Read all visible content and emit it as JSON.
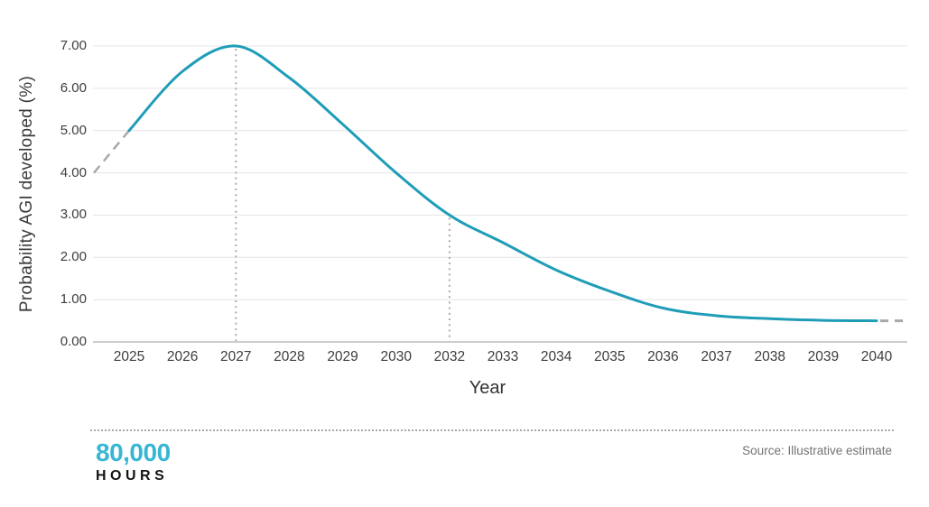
{
  "chart_data": {
    "type": "line",
    "title": "",
    "xlabel": "Year",
    "ylabel": "Probability AGI developed (%)",
    "x_tick_labels": [
      "2025",
      "2026",
      "2027",
      "2028",
      "2029",
      "2030",
      "2032",
      "2033",
      "2034",
      "2035",
      "2036",
      "2037",
      "2038",
      "2039",
      "2040"
    ],
    "y_tick_labels": [
      "0.00",
      "1.00",
      "2.00",
      "3.00",
      "4.00",
      "5.00",
      "6.00",
      "7.00"
    ],
    "ylim": [
      0,
      7
    ],
    "grid": "horizontal-only",
    "legend": "none",
    "series": [
      {
        "name": "Probability AGI developed (%)",
        "style": "solid",
        "values": [
          5.0,
          6.4,
          7.0,
          6.25,
          5.15,
          4.0,
          3.0,
          2.35,
          1.7,
          1.2,
          0.8,
          0.62,
          0.55,
          0.51,
          0.5
        ]
      }
    ],
    "dashed_lead_in": {
      "start_value": 4.0,
      "end_value": 5.0
    },
    "dashed_lead_out": {
      "value": 0.5
    },
    "annotations": [
      {
        "type": "dotted-vline",
        "x_label": "2027",
        "top_value": 7.0
      },
      {
        "type": "dotted-vline",
        "x_label": "2032",
        "top_value": 3.0
      }
    ],
    "colors": {
      "line": "#1f9db8",
      "dash": "#a8a8a8",
      "dotted_vline": "#ababab",
      "grid": "#e4e4e4",
      "axis_line": "#bcbcbc",
      "tick_text": "#3d3d3d"
    }
  },
  "footer": {
    "logo_top": "80,000",
    "logo_bottom": "HOURS",
    "logo_color": "#38b6d4",
    "source": "Source: Illustrative estimate"
  }
}
